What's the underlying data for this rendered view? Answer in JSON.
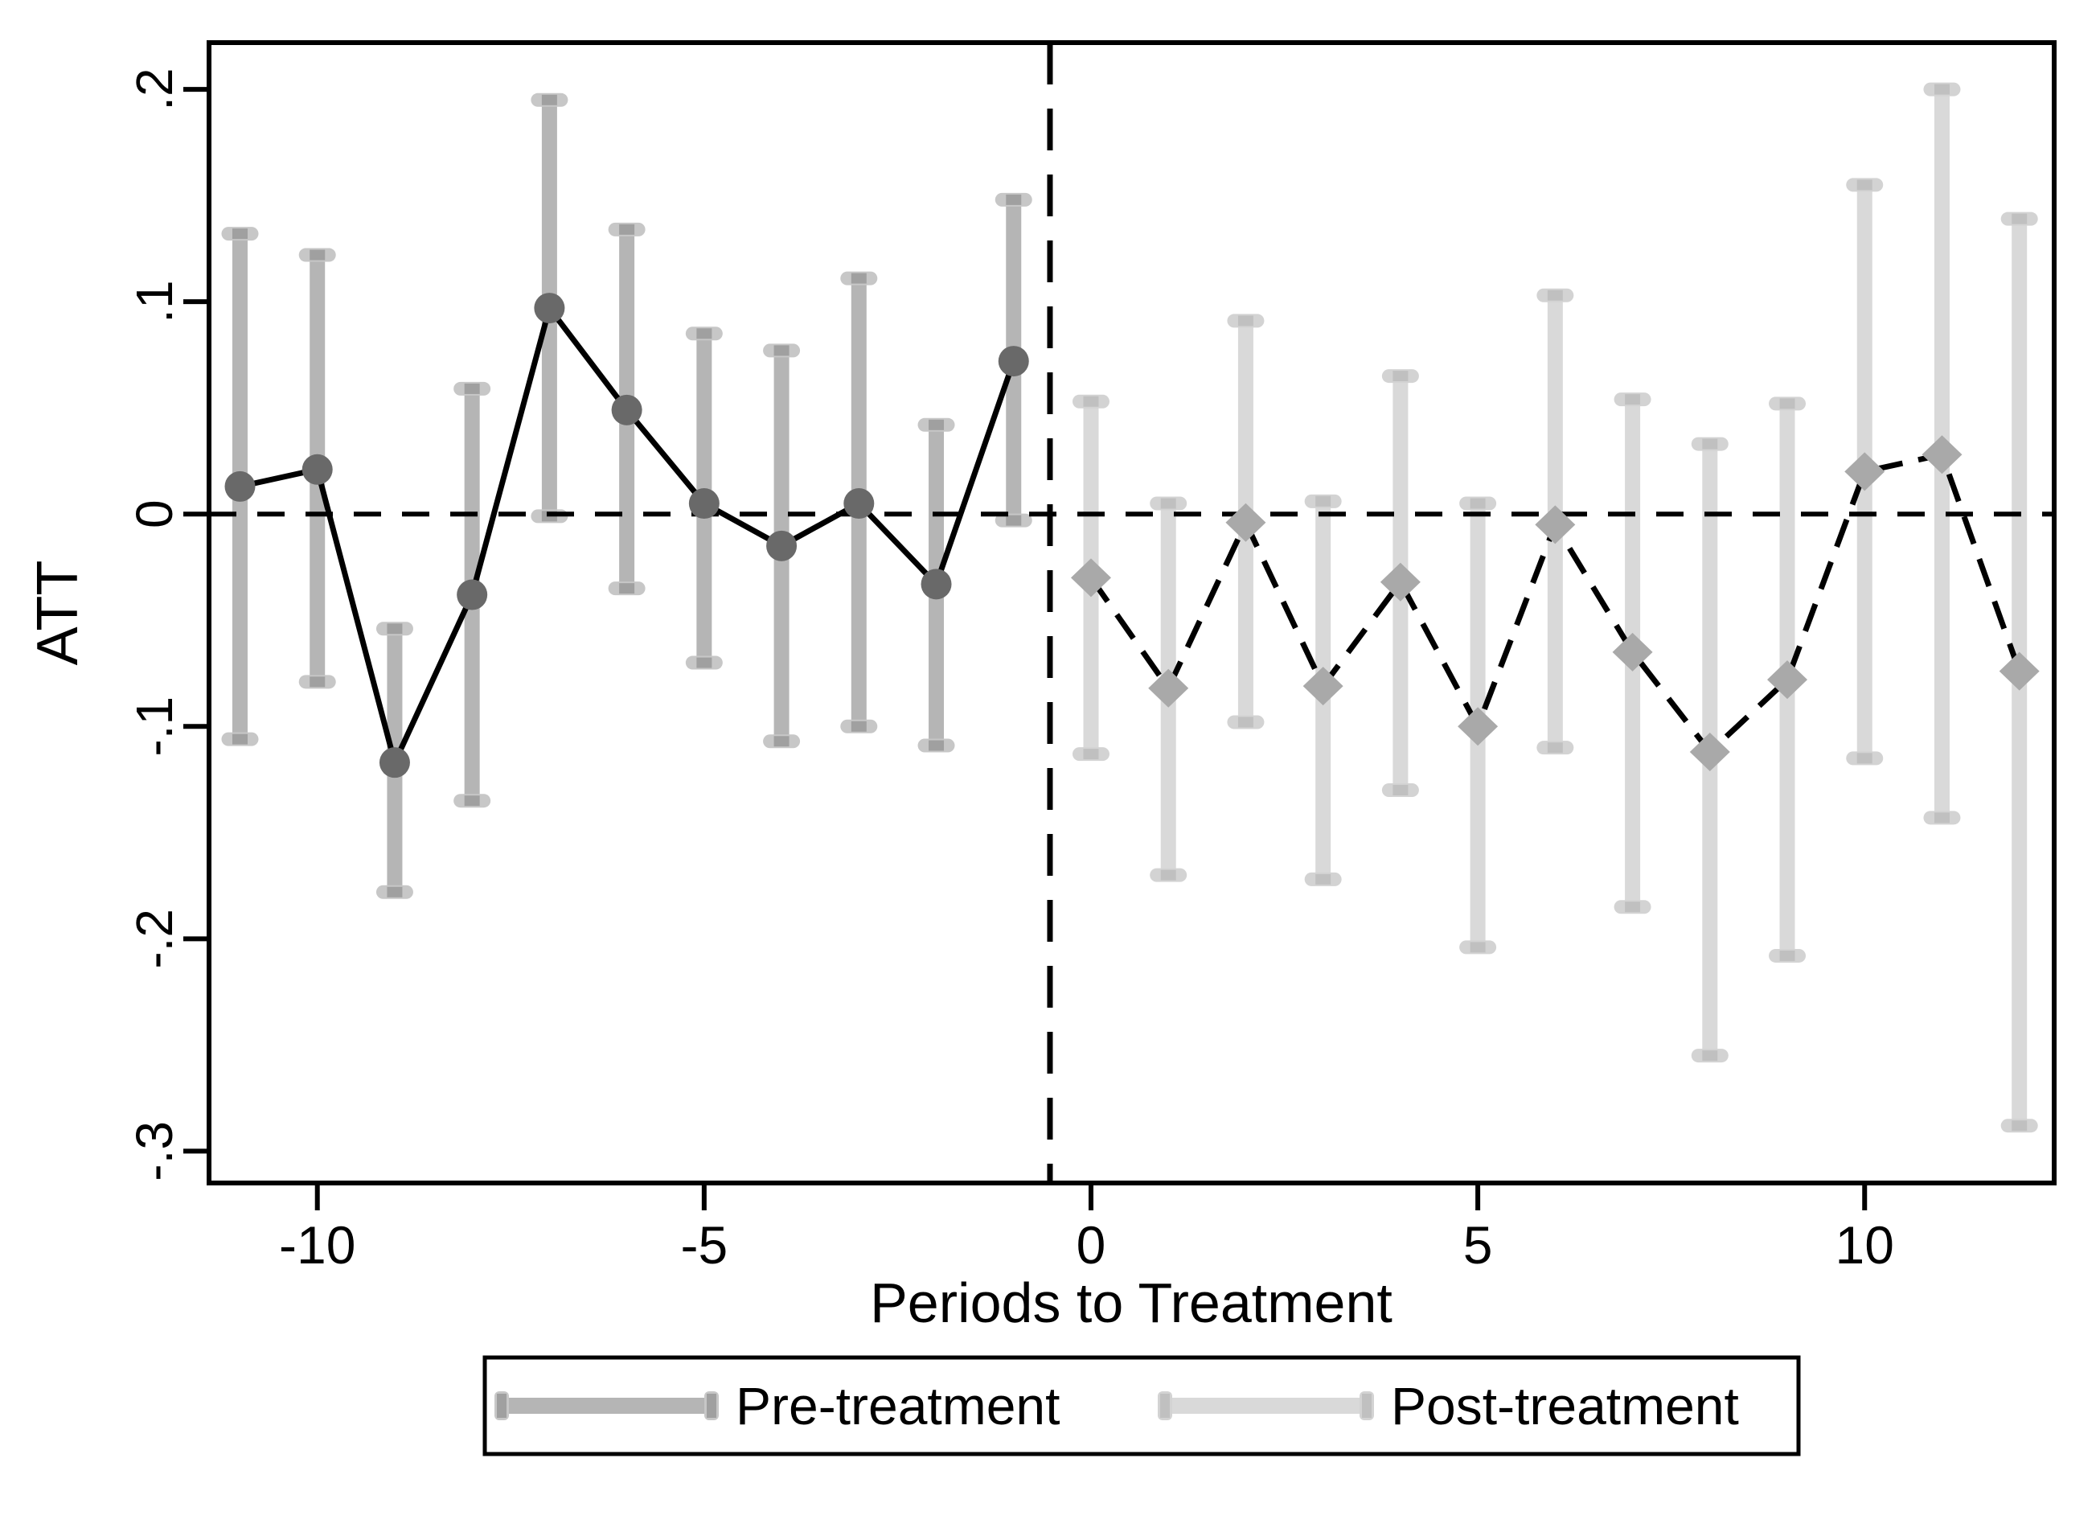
{
  "chart_data": {
    "type": "line",
    "subtype": "event-study-errorbar",
    "title": "",
    "xlabel": "Periods to Treatment",
    "ylabel": "ATT",
    "xlim": [
      -11.4,
      12.45
    ],
    "ylim": [
      -0.315,
      0.222
    ],
    "x_ticks": [
      {
        "value": -10,
        "label": "-10"
      },
      {
        "value": -5,
        "label": "-5"
      },
      {
        "value": 0,
        "label": "0"
      },
      {
        "value": 5,
        "label": "5"
      },
      {
        "value": 10,
        "label": "10"
      }
    ],
    "y_ticks": [
      {
        "value": 0.2,
        "label": ".2"
      },
      {
        "value": 0.1,
        "label": ".1"
      },
      {
        "value": 0.0,
        "label": "0"
      },
      {
        "value": -0.1,
        "label": "-.1"
      },
      {
        "value": -0.2,
        "label": "-.2"
      },
      {
        "value": -0.3,
        "label": "-.3"
      }
    ],
    "reference_lines": {
      "horizontal_y": 0,
      "vertical_x": -0.53
    },
    "grid": false,
    "legend_position": "bottom",
    "series": [
      {
        "name": "Pre-treatment",
        "marker": "circle",
        "line_style": "solid",
        "points": [
          {
            "t": -11,
            "est": 0.013,
            "lo": -0.106,
            "hi": 0.132
          },
          {
            "t": -10,
            "est": 0.021,
            "lo": -0.079,
            "hi": 0.122
          },
          {
            "t": -9,
            "est": -0.117,
            "lo": -0.178,
            "hi": -0.054
          },
          {
            "t": -8,
            "est": -0.038,
            "lo": -0.135,
            "hi": 0.059
          },
          {
            "t": -7,
            "est": 0.097,
            "lo": -0.001,
            "hi": 0.195
          },
          {
            "t": -6,
            "est": 0.049,
            "lo": -0.035,
            "hi": 0.134
          },
          {
            "t": -5,
            "est": 0.005,
            "lo": -0.07,
            "hi": 0.085
          },
          {
            "t": -4,
            "est": -0.015,
            "lo": -0.107,
            "hi": 0.077
          },
          {
            "t": -3,
            "est": 0.005,
            "lo": -0.1,
            "hi": 0.111
          },
          {
            "t": -2,
            "est": -0.033,
            "lo": -0.109,
            "hi": 0.042
          },
          {
            "t": -1,
            "est": 0.072,
            "lo": -0.003,
            "hi": 0.148
          }
        ]
      },
      {
        "name": "Post-treatment",
        "marker": "diamond",
        "line_style": "dashed",
        "points": [
          {
            "t": 0,
            "est": -0.03,
            "lo": -0.113,
            "hi": 0.053
          },
          {
            "t": 1,
            "est": -0.082,
            "lo": -0.17,
            "hi": 0.005
          },
          {
            "t": 2,
            "est": -0.004,
            "lo": -0.098,
            "hi": 0.091
          },
          {
            "t": 3,
            "est": -0.081,
            "lo": -0.172,
            "hi": 0.006
          },
          {
            "t": 4,
            "est": -0.032,
            "lo": -0.13,
            "hi": 0.065
          },
          {
            "t": 5,
            "est": -0.1,
            "lo": -0.204,
            "hi": 0.005
          },
          {
            "t": 6,
            "est": -0.005,
            "lo": -0.11,
            "hi": 0.103
          },
          {
            "t": 7,
            "est": -0.065,
            "lo": -0.185,
            "hi": 0.054
          },
          {
            "t": 8,
            "est": -0.112,
            "lo": -0.255,
            "hi": 0.033
          },
          {
            "t": 9,
            "est": -0.078,
            "lo": -0.208,
            "hi": 0.052
          },
          {
            "t": 10,
            "est": 0.02,
            "lo": -0.115,
            "hi": 0.155
          },
          {
            "t": 11,
            "est": 0.028,
            "lo": -0.143,
            "hi": 0.2
          },
          {
            "t": 12,
            "est": -0.074,
            "lo": -0.288,
            "hi": 0.139
          }
        ]
      }
    ],
    "legend": {
      "entries": [
        {
          "label": "Pre-treatment"
        },
        {
          "label": "Post-treatment"
        }
      ]
    },
    "colors": {
      "background": "#ffffff",
      "axis": "#000000",
      "reference_line": "#000000",
      "pre_bar": "#b5b5b5",
      "pre_cap_pill": "#c7c7c7",
      "pre_cap_core": "#a0a0a0",
      "pre_marker": "#696969",
      "pre_line": "#000000",
      "post_bar": "#d9d9d9",
      "post_cap_pill": "#d3d3d3",
      "post_cap_core": "#c0c0c0",
      "post_marker": "#a9a9a9",
      "post_line": "#000000"
    }
  }
}
